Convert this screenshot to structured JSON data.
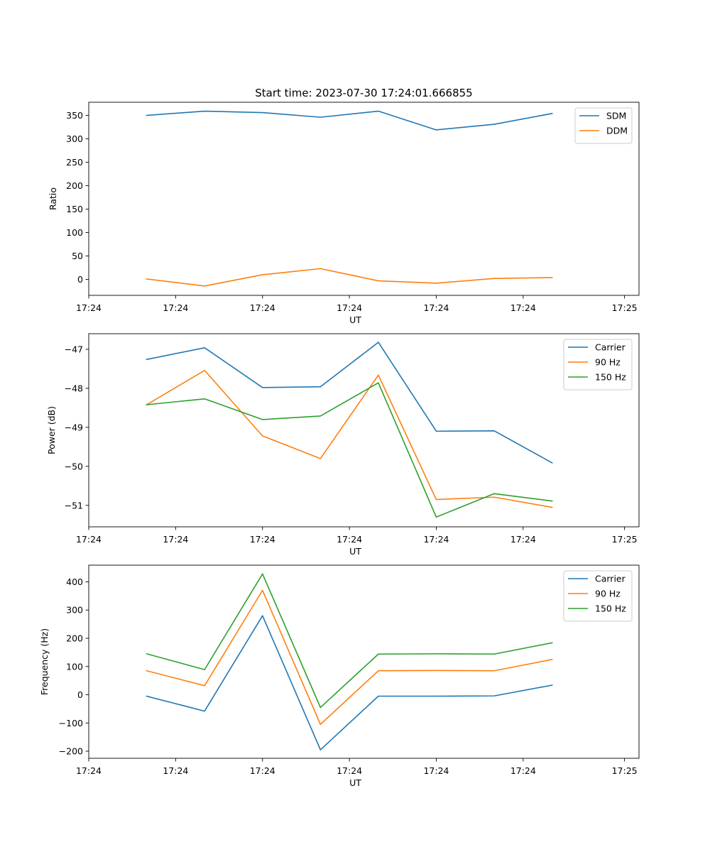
{
  "figure": {
    "title": "Start time: 2023-07-30 17:24:01.666855"
  },
  "chart_data": [
    {
      "type": "line",
      "ylabel": "Ratio",
      "xlabel": "UT",
      "xlim": [
        0,
        9.5
      ],
      "ylim": [
        -34,
        378
      ],
      "x": [
        1,
        2,
        3,
        4,
        5,
        6,
        7,
        8
      ],
      "xticks": [
        0,
        1.5,
        3,
        4.5,
        6,
        7.5,
        9.25
      ],
      "xtick_labels": [
        "17:24",
        "17:24",
        "17:24",
        "17:24",
        "17:24",
        "17:24",
        "17:25"
      ],
      "yticks": [
        0,
        50,
        100,
        150,
        200,
        250,
        300,
        350
      ],
      "ytick_labels": [
        "0",
        "50",
        "100",
        "150",
        "200",
        "250",
        "300",
        "350"
      ],
      "legend_position": "top-right",
      "series": [
        {
          "name": "SDM",
          "color": "#1f77b4",
          "values": [
            350,
            359,
            356,
            346,
            359,
            319,
            331,
            354
          ]
        },
        {
          "name": "DDM",
          "color": "#ff7f0e",
          "values": [
            1,
            -14,
            10,
            23,
            -3,
            -8,
            2,
            4
          ]
        }
      ]
    },
    {
      "type": "line",
      "ylabel": "Power (dB)",
      "xlabel": "UT",
      "xlim": [
        0,
        9.5
      ],
      "ylim": [
        -51.55,
        -46.6
      ],
      "x": [
        1,
        2,
        3,
        4,
        5,
        6,
        7,
        8
      ],
      "xticks": [
        0,
        1.5,
        3,
        4.5,
        6,
        7.5,
        9.25
      ],
      "xtick_labels": [
        "17:24",
        "17:24",
        "17:24",
        "17:24",
        "17:24",
        "17:24",
        "17:25"
      ],
      "yticks": [
        -47,
        -48,
        -49,
        -50,
        -51
      ],
      "ytick_labels": [
        "−47",
        "−48",
        "−49",
        "−50",
        "−51"
      ],
      "legend_position": "top-right",
      "series": [
        {
          "name": "Carrier",
          "color": "#1f77b4",
          "values": [
            -47.26,
            -46.96,
            -47.98,
            -47.96,
            -46.82,
            -49.1,
            -49.09,
            -49.91
          ]
        },
        {
          "name": "90 Hz",
          "color": "#ff7f0e",
          "values": [
            -48.42,
            -47.54,
            -49.22,
            -49.8,
            -47.66,
            -50.85,
            -50.79,
            -51.05
          ]
        },
        {
          "name": "150 Hz",
          "color": "#2ca02c",
          "values": [
            -48.42,
            -48.27,
            -48.8,
            -48.71,
            -47.86,
            -51.3,
            -50.7,
            -50.89
          ]
        }
      ]
    },
    {
      "type": "line",
      "ylabel": "Frequency (Hz)",
      "xlabel": "UT",
      "xlim": [
        0,
        9.5
      ],
      "ylim": [
        -225,
        459
      ],
      "x": [
        1,
        2,
        3,
        4,
        5,
        6,
        7,
        8
      ],
      "xticks": [
        0,
        1.5,
        3,
        4.5,
        6,
        7.5,
        9.25
      ],
      "xtick_labels": [
        "17:24",
        "17:24",
        "17:24",
        "17:24",
        "17:24",
        "17:24",
        "17:25"
      ],
      "yticks": [
        -200,
        -100,
        0,
        100,
        200,
        300,
        400
      ],
      "ytick_labels": [
        "−200",
        "−100",
        "0",
        "100",
        "200",
        "300",
        "400"
      ],
      "legend_position": "top-right",
      "series": [
        {
          "name": "Carrier",
          "color": "#1f77b4",
          "values": [
            -5,
            -58,
            280,
            -195,
            -5,
            -5,
            -4,
            34
          ]
        },
        {
          "name": "90 Hz",
          "color": "#ff7f0e",
          "values": [
            85,
            32,
            370,
            -105,
            85,
            86,
            85,
            125
          ]
        },
        {
          "name": "150 Hz",
          "color": "#2ca02c",
          "values": [
            145,
            89,
            428,
            -45,
            144,
            145,
            144,
            184
          ]
        }
      ]
    }
  ]
}
